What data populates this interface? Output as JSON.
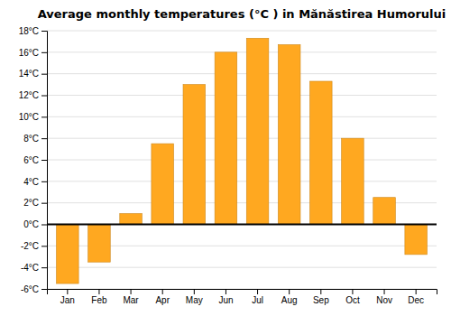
{
  "chart_data": {
    "type": "bar",
    "title": "Average monthly temperatures (°C ) in Mănăstirea Humorului",
    "categories": [
      "Jan",
      "Feb",
      "Mar",
      "Apr",
      "May",
      "Jun",
      "Jul",
      "Aug",
      "Sep",
      "Oct",
      "Nov",
      "Dec"
    ],
    "values": [
      -5.5,
      -3.5,
      1.0,
      7.5,
      13.0,
      16.0,
      17.3,
      16.7,
      13.3,
      8.0,
      2.5,
      -2.8
    ],
    "color": "#FFA820",
    "ylim": [
      -6,
      18
    ],
    "yticks": [
      {
        "value": -6,
        "label": "-6°C"
      },
      {
        "value": -4,
        "label": "-4°C"
      },
      {
        "value": -2,
        "label": "-2°C"
      },
      {
        "value": 0,
        "label": "0°C"
      },
      {
        "value": 2,
        "label": "2°C"
      },
      {
        "value": 4,
        "label": "4°C"
      },
      {
        "value": 6,
        "label": "6°C"
      },
      {
        "value": 8,
        "label": "8°C"
      },
      {
        "value": 10,
        "label": "10°C"
      },
      {
        "value": 12,
        "label": "12°C"
      },
      {
        "value": 14,
        "label": "14°C"
      },
      {
        "value": 16,
        "label": "16°C"
      },
      {
        "value": 18,
        "label": "18°C"
      }
    ],
    "grid": true
  }
}
